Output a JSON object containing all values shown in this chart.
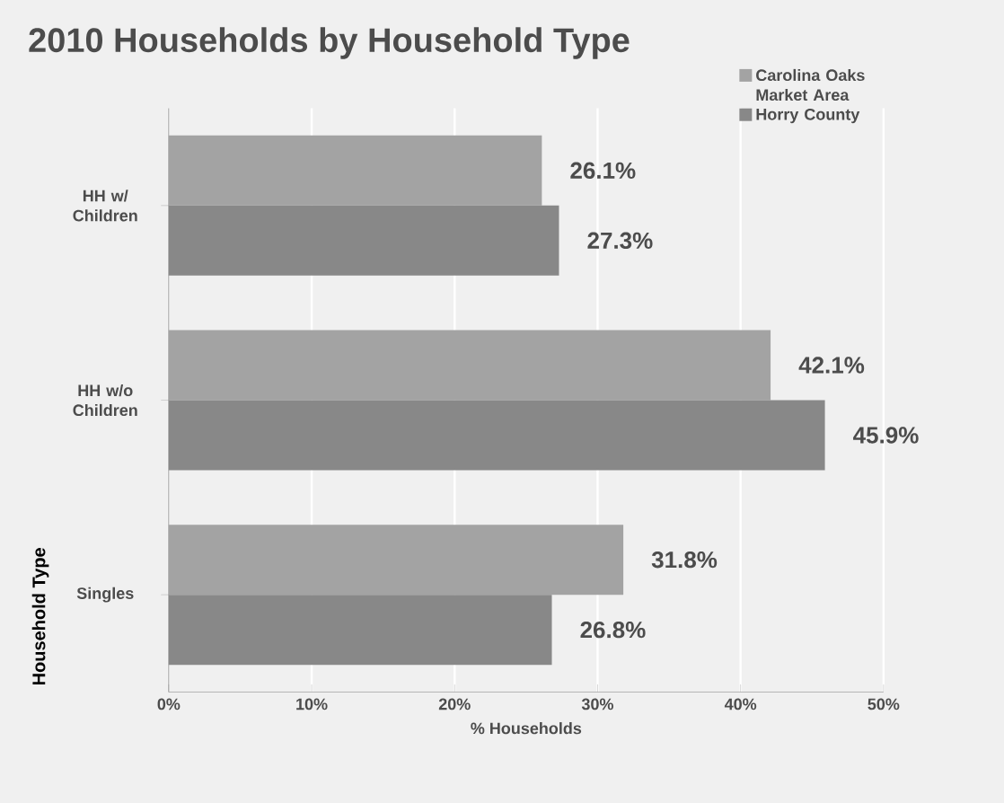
{
  "chart_data": {
    "type": "bar",
    "orientation": "horizontal",
    "title": "2010 Households by Household Type",
    "xlabel": "% Households",
    "ylabel": "Household Type",
    "categories": [
      "HH w/ Children",
      "HH w/o Children",
      "Singles"
    ],
    "series": [
      {
        "name": "Carolina Oaks Market Area",
        "color": "#a3a3a3",
        "values": [
          26.1,
          42.1,
          31.8
        ],
        "value_labels": [
          "26.1%",
          "42.1%",
          "31.8%"
        ]
      },
      {
        "name": "Horry County",
        "color": "#888888",
        "values": [
          27.3,
          45.9,
          26.8
        ],
        "value_labels": [
          "27.3%",
          "45.9%",
          "26.8%"
        ]
      }
    ],
    "xlim": [
      0,
      50
    ],
    "xticks": [
      {
        "value": 0,
        "label": "0%"
      },
      {
        "value": 10,
        "label": "10%"
      },
      {
        "value": 20,
        "label": "20%"
      },
      {
        "value": 30,
        "label": "30%"
      },
      {
        "value": 40,
        "label": "40%"
      },
      {
        "value": 50,
        "label": "50%"
      }
    ],
    "grid": "x",
    "legend": "top right"
  }
}
